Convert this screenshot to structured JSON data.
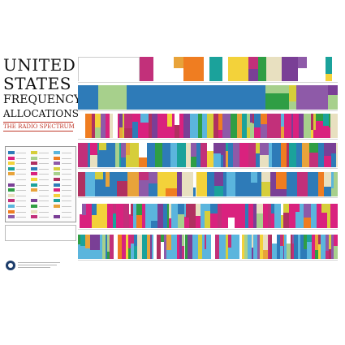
{
  "title": {
    "lines": [
      "UNITED",
      "STATES",
      "FREQUENCY",
      "ALLOCATIONS"
    ],
    "subtitle": "THE RADIO SPECTRUM"
  },
  "colors": {
    "palette": [
      "#2e7bb8",
      "#d9227e",
      "#f3d23a",
      "#1ba29b",
      "#e8a33a",
      "#ffffff",
      "#7a3f96",
      "#2f9e44",
      "#e8e0c0",
      "#c2307a",
      "#5bb5dd",
      "#ef7d21",
      "#8e5aa8",
      "#d6ce3a",
      "#a7d08c",
      "#b03060"
    ],
    "seal": "#1d3d6b",
    "subtitle": "#c0392b"
  },
  "seal_icon": "us-seal-icon"
}
